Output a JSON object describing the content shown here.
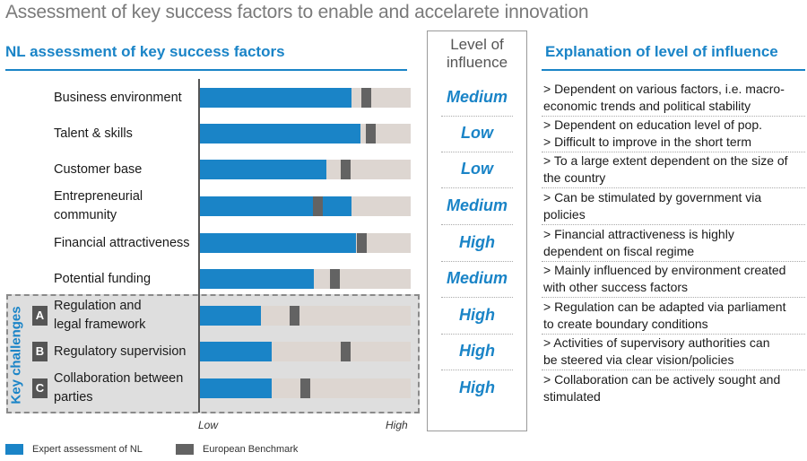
{
  "main_title": "Assessment of key success factors to enable and accelarete innovation",
  "sections": {
    "assessment_title": "NL assessment of key success factors",
    "level_title": [
      "Level of",
      "influence"
    ],
    "explanation_title": "Explanation of level of influence"
  },
  "key_challenges_label": "Key challenges",
  "colors": {
    "accent": "#1a84c7",
    "benchmark": "#636363",
    "track": "#ddd6d1",
    "badge": "#555555"
  },
  "chart_data": {
    "type": "bar",
    "orientation": "horizontal",
    "categories": [
      "Business environment",
      "Talent & skills",
      "Customer base",
      "Entrepreneurial community",
      "Financial attractiveness",
      "Potential funding",
      "Regulation and legal framework",
      "Regulatory supervision",
      "Collaboration between parties"
    ],
    "category_lines": [
      [
        "Business environment"
      ],
      [
        "Talent & skills"
      ],
      [
        "Customer base"
      ],
      [
        "Entrepreneurial",
        "community"
      ],
      [
        "Financial attractiveness"
      ],
      [
        "Potential funding"
      ],
      [
        "Regulation and",
        "legal framework"
      ],
      [
        "Regulatory supervision"
      ],
      [
        "Collaboration between",
        "parties"
      ]
    ],
    "badges": [
      "",
      "",
      "",
      "",
      "",
      "",
      "A",
      "B",
      "C"
    ],
    "series": [
      {
        "name": "Expert assessment of NL",
        "values": [
          0.72,
          0.76,
          0.6,
          0.72,
          0.74,
          0.54,
          0.29,
          0.34,
          0.34
        ]
      },
      {
        "name": "European Benchmark",
        "values": [
          0.79,
          0.81,
          0.69,
          0.56,
          0.77,
          0.64,
          0.45,
          0.69,
          0.5
        ]
      }
    ],
    "xlim": [
      0,
      1
    ],
    "x_tick_labels": [
      "Low",
      "High"
    ],
    "levels": [
      "Medium",
      "Low",
      "Low",
      "Medium",
      "High",
      "Medium",
      "High",
      "High",
      "High"
    ],
    "explanations": [
      [
        "> Dependent on various factors, i.e. macro-",
        "economic trends and political stability"
      ],
      [
        "> Dependent on education level of pop.",
        "> Difficult to improve in the short term"
      ],
      [
        "> To a large extent dependent on the size of",
        "the country"
      ],
      [
        "> Can be stimulated by government via",
        "policies"
      ],
      [
        "> Financial attractiveness is highly",
        "dependent on fiscal regime"
      ],
      [
        "> Mainly influenced by environment created",
        "with other success factors"
      ],
      [
        "> Regulation can be adapted via parliament",
        "to create boundary conditions"
      ],
      [
        "> Activities of supervisory authorities can",
        "be steered via clear vision/policies"
      ],
      [
        "> Collaboration can be actively sought and",
        "stimulated"
      ]
    ],
    "legend": [
      {
        "label": "Expert assessment of NL",
        "color": "#1a84c7"
      },
      {
        "label": "European Benchmark",
        "color": "#636363"
      }
    ]
  }
}
